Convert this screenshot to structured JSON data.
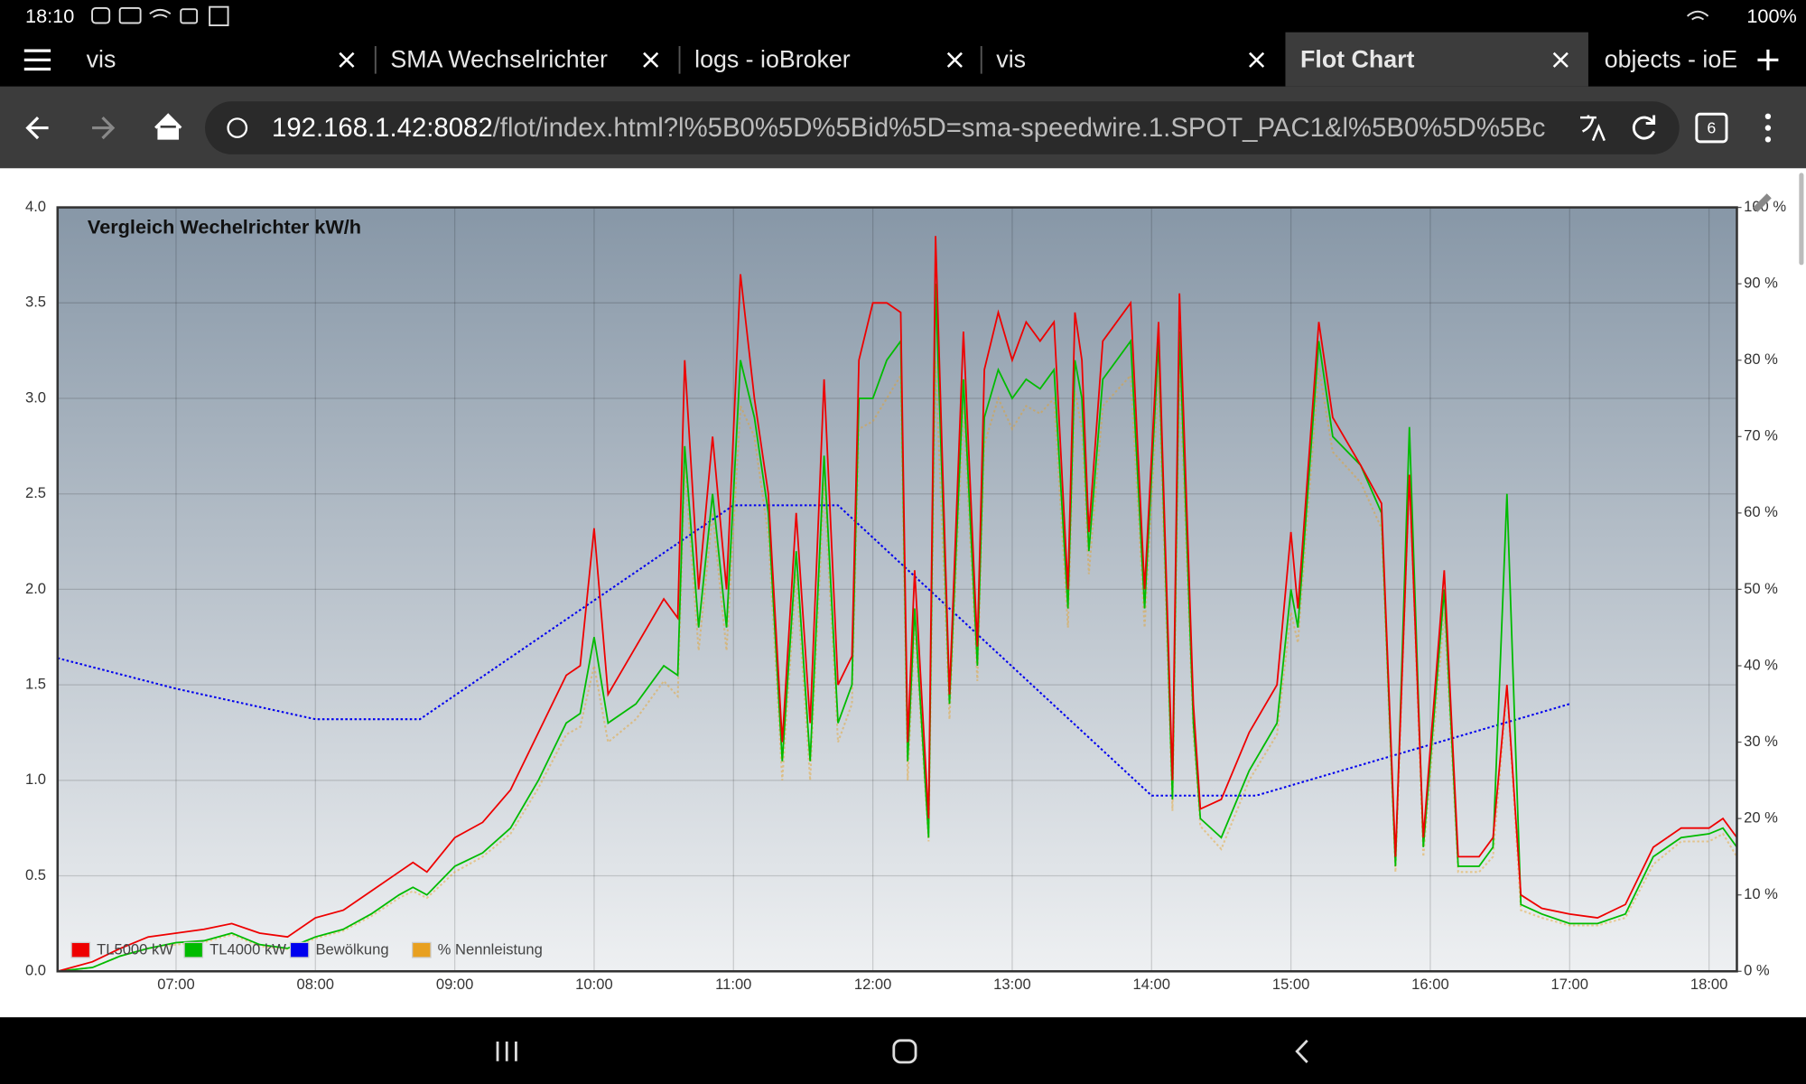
{
  "status_bar": {
    "time": "18:10",
    "battery": "100%"
  },
  "tabs": [
    "vis",
    "SMA Wechselrichter",
    "logs - ioBroker",
    "vis",
    "Flot Chart",
    "objects - ioE"
  ],
  "active_tab": 4,
  "tab_count": "6",
  "address_bar": {
    "host": "192.168.1.42:8082",
    "path": "/flot/index.html?l%5B0%5D%5Bid%5D=sma-speedwire.1.SPOT_PAC1&l%5B0%5D%5Bc"
  },
  "chart_data": {
    "type": "line",
    "title": "Vergleich Wechelrichter kW/h",
    "x": [
      6.15,
      6.4,
      6.6,
      6.8,
      7.0,
      7.2,
      7.4,
      7.6,
      7.8,
      8.0,
      8.2,
      8.4,
      8.6,
      8.7,
      8.8,
      9.0,
      9.2,
      9.4,
      9.6,
      9.8,
      9.9,
      10.0,
      10.1,
      10.3,
      10.5,
      10.6,
      10.65,
      10.75,
      10.85,
      10.95,
      11.05,
      11.15,
      11.25,
      11.35,
      11.45,
      11.55,
      11.65,
      11.75,
      11.85,
      11.9,
      12.0,
      12.1,
      12.2,
      12.25,
      12.3,
      12.4,
      12.45,
      12.55,
      12.65,
      12.75,
      12.8,
      12.9,
      13.0,
      13.1,
      13.2,
      13.3,
      13.4,
      13.45,
      13.5,
      13.55,
      13.65,
      13.75,
      13.85,
      13.95,
      14.05,
      14.15,
      14.2,
      14.3,
      14.35,
      14.5,
      14.7,
      14.9,
      15.0,
      15.05,
      15.2,
      15.3,
      15.5,
      15.65,
      15.75,
      15.85,
      15.95,
      16.1,
      16.2,
      16.35,
      16.45,
      16.55,
      16.65,
      16.8,
      17.0,
      17.2,
      17.4,
      17.6,
      17.8,
      18.0,
      18.1,
      18.2
    ],
    "series": [
      {
        "name": "TL5000 kW",
        "color": "#ee0000",
        "values": [
          0.0,
          0.05,
          0.12,
          0.18,
          0.2,
          0.22,
          0.25,
          0.2,
          0.18,
          0.28,
          0.32,
          0.42,
          0.52,
          0.57,
          0.52,
          0.7,
          0.78,
          0.95,
          1.25,
          1.55,
          1.6,
          2.32,
          1.45,
          1.7,
          1.95,
          1.85,
          3.2,
          2.0,
          2.8,
          2.0,
          3.65,
          3.0,
          2.5,
          1.2,
          2.4,
          1.3,
          3.1,
          1.5,
          1.65,
          3.2,
          3.5,
          3.5,
          3.45,
          1.2,
          2.1,
          0.8,
          3.85,
          1.45,
          3.35,
          1.7,
          3.15,
          3.45,
          3.2,
          3.4,
          3.3,
          3.4,
          2.0,
          3.45,
          3.2,
          2.3,
          3.3,
          3.4,
          3.5,
          2.0,
          3.4,
          1.0,
          3.55,
          1.4,
          0.85,
          0.9,
          1.25,
          1.5,
          2.3,
          1.9,
          3.4,
          2.9,
          2.65,
          2.45,
          0.6,
          2.6,
          0.7,
          2.1,
          0.6,
          0.6,
          0.7,
          1.5,
          0.4,
          0.33,
          0.3,
          0.28,
          0.35,
          0.65,
          0.75,
          0.75,
          0.8,
          0.7
        ]
      },
      {
        "name": "TL4000 kW",
        "color": "#00bb00",
        "values": [
          0.0,
          0.02,
          0.08,
          0.12,
          0.15,
          0.16,
          0.2,
          0.14,
          0.12,
          0.18,
          0.22,
          0.3,
          0.4,
          0.44,
          0.4,
          0.55,
          0.62,
          0.75,
          1.0,
          1.3,
          1.35,
          1.75,
          1.3,
          1.4,
          1.6,
          1.55,
          2.75,
          1.8,
          2.5,
          1.8,
          3.2,
          2.9,
          2.4,
          1.1,
          2.2,
          1.1,
          2.7,
          1.3,
          1.5,
          3.0,
          3.0,
          3.2,
          3.3,
          1.1,
          1.9,
          0.7,
          3.6,
          1.4,
          3.1,
          1.6,
          2.9,
          3.15,
          3.0,
          3.1,
          3.05,
          3.15,
          1.9,
          3.2,
          3.0,
          2.2,
          3.1,
          3.2,
          3.3,
          1.9,
          3.3,
          0.9,
          3.35,
          1.3,
          0.8,
          0.7,
          1.05,
          1.3,
          2.0,
          1.8,
          3.3,
          2.8,
          2.65,
          2.4,
          0.55,
          2.85,
          0.65,
          2.0,
          0.55,
          0.55,
          0.65,
          2.5,
          0.35,
          0.3,
          0.25,
          0.25,
          0.3,
          0.6,
          0.7,
          0.72,
          0.75,
          0.65
        ]
      },
      {
        "name": "Bewölkung",
        "color": "#0000ee",
        "axis": "y2",
        "dotted": true,
        "x": [
          6.15,
          7.0,
          8.0,
          8.75,
          11.0,
          11.75,
          14.0,
          14.75,
          17.0
        ],
        "values": [
          41,
          37,
          33,
          33,
          61,
          61,
          23,
          23,
          35
        ]
      },
      {
        "name": "% Nennleistung",
        "color": "#e8a020",
        "axis": "y2",
        "dotted": true,
        "values": [
          0,
          0.5,
          2,
          3,
          3.5,
          3.8,
          4.8,
          3.3,
          2.9,
          4.3,
          5.3,
          7.2,
          9.6,
          10.5,
          9.6,
          13,
          15,
          18,
          24,
          31,
          32,
          40,
          30,
          33,
          38,
          36,
          66,
          42,
          60,
          42,
          74,
          70,
          57,
          25,
          52,
          25,
          64,
          30,
          35,
          71,
          72,
          75,
          78,
          25,
          45,
          17,
          80,
          33,
          74,
          38,
          69,
          75,
          71,
          74,
          73,
          75,
          45,
          76,
          71,
          52,
          74,
          76,
          78,
          45,
          78,
          21,
          79,
          31,
          19,
          16,
          25,
          31,
          47,
          43,
          79,
          68,
          64,
          58,
          13,
          65,
          15,
          47,
          13,
          13,
          15,
          37,
          8,
          7,
          6,
          6,
          7,
          14,
          17,
          17,
          18,
          15
        ]
      }
    ],
    "xlim": [
      6.15,
      18.2
    ],
    "xticks": [
      {
        "value": 7,
        "label": "07:00"
      },
      {
        "value": 8,
        "label": "08:00"
      },
      {
        "value": 9,
        "label": "09:00"
      },
      {
        "value": 10,
        "label": "10:00"
      },
      {
        "value": 11,
        "label": "11:00"
      },
      {
        "value": 12,
        "label": "12:00"
      },
      {
        "value": 13,
        "label": "13:00"
      },
      {
        "value": 14,
        "label": "14:00"
      },
      {
        "value": 15,
        "label": "15:00"
      },
      {
        "value": 16,
        "label": "16:00"
      },
      {
        "value": 17,
        "label": "17:00"
      },
      {
        "value": 18,
        "label": "18:00"
      }
    ],
    "ylim": [
      0,
      4
    ],
    "yticks": [
      {
        "value": 0,
        "label": "0.0"
      },
      0.5,
      {
        "value": 1,
        "label": "1.0"
      },
      1.5,
      {
        "value": 2,
        "label": "2.0"
      },
      2.5,
      {
        "value": 3,
        "label": "3.0"
      },
      3.5,
      {
        "value": 4,
        "label": "4.0"
      }
    ],
    "y2lim": [
      0,
      100
    ],
    "y2ticks": [
      {
        "value": 0,
        "label": "0 %"
      },
      {
        "value": 10,
        "label": "10 %"
      },
      {
        "value": 20,
        "label": "20 %"
      },
      {
        "value": 30,
        "label": "30 %"
      },
      {
        "value": 40,
        "label": "40 %"
      },
      {
        "value": 50,
        "label": "50 %"
      },
      {
        "value": 60,
        "label": "60 %"
      },
      {
        "value": 70,
        "label": "70 %"
      },
      {
        "value": 80,
        "label": "80 %"
      },
      {
        "value": 90,
        "label": "90 %"
      },
      {
        "value": 100,
        "label": "100 %"
      }
    ],
    "grid": true,
    "legend": "bottom-left"
  }
}
